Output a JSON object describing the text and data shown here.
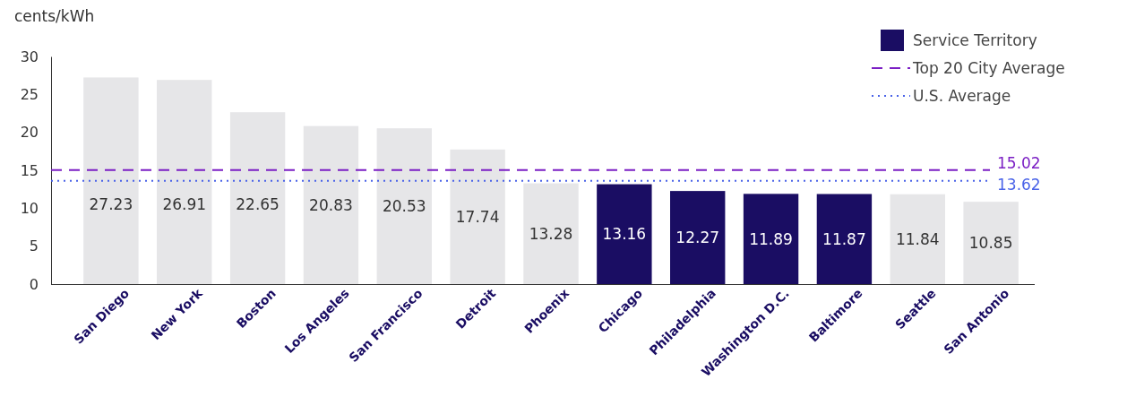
{
  "chart_data": {
    "type": "bar",
    "ylabel": "cents/kWh",
    "categories": [
      "San Diego",
      "New York",
      "Boston",
      "Los Angeles",
      "San Francisco",
      "Detroit",
      "Phoenix",
      "Chicago",
      "Philadelphia",
      "Washington D.C.",
      "Baltimore",
      "Seattle",
      "San Antonio"
    ],
    "series": [
      {
        "name": "Service Territory",
        "color": "#1a0d63",
        "values": [
          null,
          null,
          null,
          null,
          null,
          null,
          null,
          13.16,
          12.27,
          11.89,
          11.87,
          null,
          null
        ]
      },
      {
        "color": "#e6e6e8",
        "values": [
          27.23,
          26.91,
          22.65,
          20.83,
          20.53,
          17.74,
          13.28,
          null,
          null,
          null,
          null,
          11.84,
          10.85
        ]
      }
    ],
    "ylim": [
      0,
      30
    ],
    "yticks": [
      0,
      5,
      10,
      15,
      20,
      25,
      30
    ],
    "ref_lines": [
      {
        "axis": "y",
        "value": 15.02,
        "label": "Top 20 City Average",
        "color": "#7b1fc4",
        "line_style": "dashed"
      },
      {
        "axis": "y",
        "value": 13.62,
        "label": "U.S. Average",
        "color": "#4a63e8",
        "line_style": "dotted"
      }
    ],
    "annotations": [
      "15.02",
      "13.62"
    ],
    "data_labels": true,
    "grid": false,
    "legend": "top right"
  }
}
